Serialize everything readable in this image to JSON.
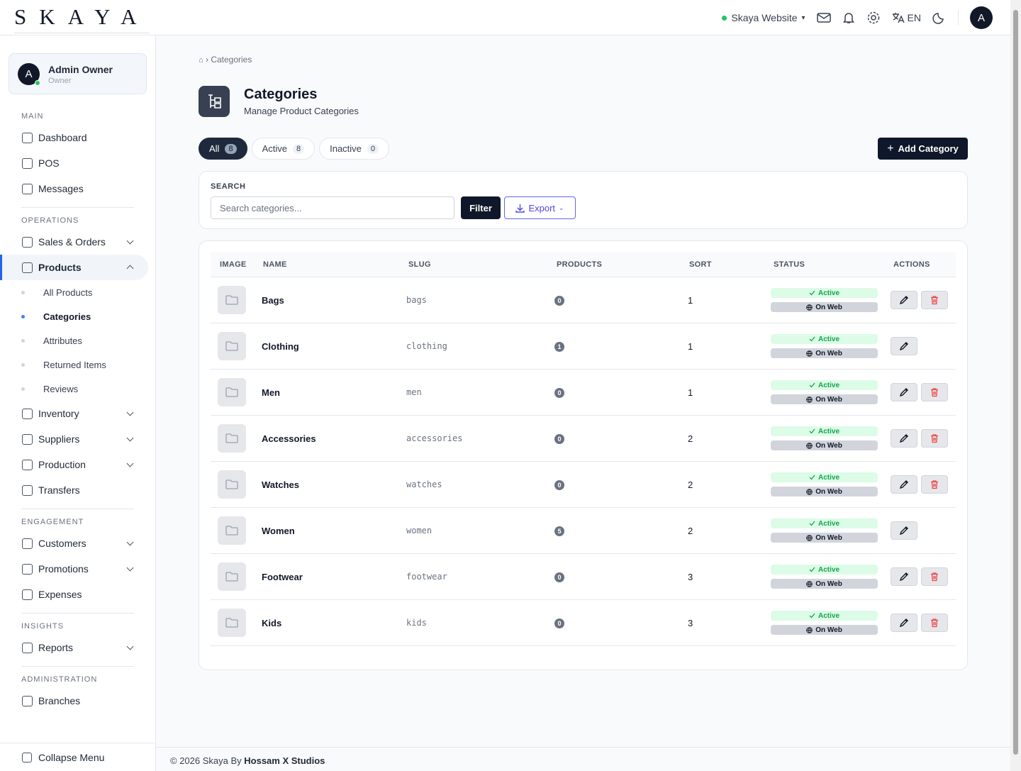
{
  "header": {
    "logo": "SKAYA",
    "store": "Skaya Website",
    "lang": "EN",
    "avatar": "A"
  },
  "sidebar": {
    "user": {
      "initial": "A",
      "name": "Admin Owner",
      "role": "Owner"
    },
    "sections": [
      {
        "title": "MAIN",
        "items": [
          {
            "label": "Dashboard"
          },
          {
            "label": "POS"
          },
          {
            "label": "Messages"
          }
        ]
      },
      {
        "title": "OPERATIONS",
        "items": [
          {
            "label": "Sales & Orders",
            "expandable": true
          },
          {
            "label": "Products",
            "expandable": true,
            "open": true,
            "children": [
              {
                "label": "All Products"
              },
              {
                "label": "Categories",
                "current": true
              },
              {
                "label": "Attributes"
              },
              {
                "label": "Returned Items"
              },
              {
                "label": "Reviews"
              }
            ]
          },
          {
            "label": "Inventory",
            "expandable": true
          },
          {
            "label": "Suppliers",
            "expandable": true
          },
          {
            "label": "Production",
            "expandable": true
          },
          {
            "label": "Transfers"
          }
        ]
      },
      {
        "title": "ENGAGEMENT",
        "items": [
          {
            "label": "Customers",
            "expandable": true
          },
          {
            "label": "Promotions",
            "expandable": true
          },
          {
            "label": "Expenses"
          }
        ]
      },
      {
        "title": "INSIGHTS",
        "items": [
          {
            "label": "Reports",
            "expandable": true
          }
        ]
      },
      {
        "title": "ADMINISTRATION",
        "items": [
          {
            "label": "Branches"
          }
        ]
      }
    ],
    "collapse": "Collapse Menu"
  },
  "breadcrumb": {
    "current": "Categories"
  },
  "page": {
    "title": "Categories",
    "subtitle": "Manage Product Categories"
  },
  "tabs": [
    {
      "label": "All",
      "count": 8,
      "selected": true
    },
    {
      "label": "Active",
      "count": 8
    },
    {
      "label": "Inactive",
      "count": 0
    }
  ],
  "add_button": "Add Category",
  "search": {
    "label": "SEARCH",
    "placeholder": "Search categories...",
    "filter": "Filter",
    "export": "Export"
  },
  "table": {
    "columns": [
      "IMAGE",
      "NAME",
      "SLUG",
      "PRODUCTS",
      "SORT",
      "STATUS",
      "ACTIONS"
    ],
    "rows": [
      {
        "name": "Bags",
        "slug": "bags",
        "products": 0,
        "sort": 1,
        "status": "Active",
        "web": "On Web",
        "deletable": true
      },
      {
        "name": "Clothing",
        "slug": "clothing",
        "products": 1,
        "sort": 1,
        "status": "Active",
        "web": "On Web",
        "deletable": false
      },
      {
        "name": "Men",
        "slug": "men",
        "products": 0,
        "sort": 1,
        "status": "Active",
        "web": "On Web",
        "deletable": true
      },
      {
        "name": "Accessories",
        "slug": "accessories",
        "products": 0,
        "sort": 2,
        "status": "Active",
        "web": "On Web",
        "deletable": true
      },
      {
        "name": "Watches",
        "slug": "watches",
        "products": 0,
        "sort": 2,
        "status": "Active",
        "web": "On Web",
        "deletable": true
      },
      {
        "name": "Women",
        "slug": "women",
        "products": 5,
        "sort": 2,
        "status": "Active",
        "web": "On Web",
        "deletable": false
      },
      {
        "name": "Footwear",
        "slug": "footwear",
        "products": 0,
        "sort": 3,
        "status": "Active",
        "web": "On Web",
        "deletable": true
      },
      {
        "name": "Kids",
        "slug": "kids",
        "products": 0,
        "sort": 3,
        "status": "Active",
        "web": "On Web",
        "deletable": true
      }
    ]
  },
  "footer": {
    "text": "© 2026 Skaya By",
    "author": "Hossam X Studios"
  }
}
